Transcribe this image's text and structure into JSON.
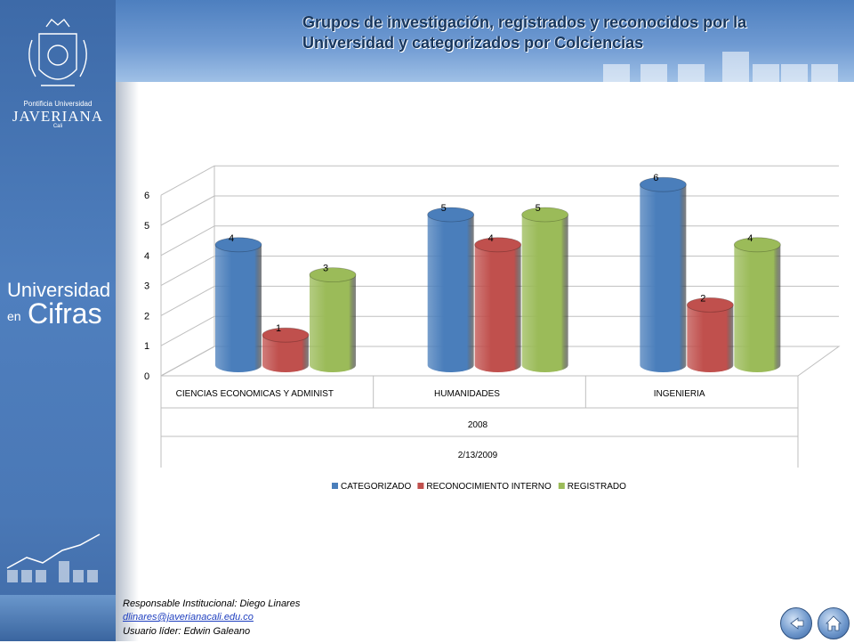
{
  "sidebar": {
    "institution_small": "Pontificia Universidad",
    "institution_big": "JAVERIANA",
    "institution_city": "Cali",
    "brand_line1": "Universidad",
    "brand_line2a": "en",
    "brand_line2b": "Cifras"
  },
  "header": {
    "title": "Grupos de investigación, registrados y reconocidos por la Universidad y categorizados por Colciencias"
  },
  "chart_data": {
    "type": "bar",
    "categories": [
      "CIENCIAS ECONOMICAS Y ADMINIST",
      "HUMANIDADES",
      "INGENIERIA"
    ],
    "series": [
      {
        "name": "CATEGORIZADO",
        "values": [
          4,
          5,
          6
        ],
        "color": "#4a7ebb"
      },
      {
        "name": "RECONOCIMIENTO INTERNO",
        "values": [
          1,
          4,
          2
        ],
        "color": "#c0504d"
      },
      {
        "name": "REGISTRADO",
        "values": [
          3,
          5,
          4
        ],
        "color": "#9bbb59"
      }
    ],
    "x_group_label_1": "2008",
    "x_group_label_2": "2/13/2009",
    "yticks": [
      0,
      1,
      2,
      3,
      4,
      5,
      6
    ],
    "ylim": [
      0,
      6
    ],
    "grid": true,
    "legend_position": "bottom",
    "style": "3d cylinders"
  },
  "footer": {
    "responsable": "Responsable Institucional: Diego Linares",
    "email": "dlinares@javerianacali.edu.co",
    "usuario": "Usuario líder: Edwin Galeano"
  },
  "nav": {
    "back_icon": "back-arrow-icon",
    "home_icon": "home-icon"
  }
}
